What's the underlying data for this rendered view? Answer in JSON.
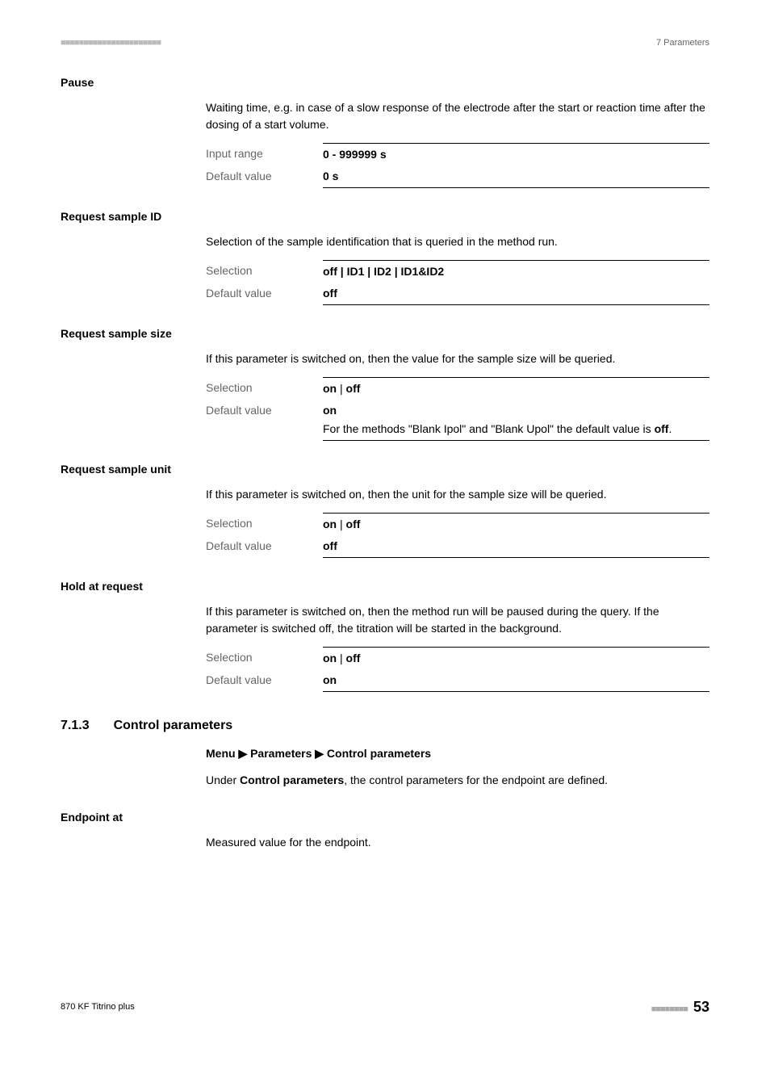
{
  "header": {
    "marks": "■■■■■■■■■■■■■■■■■■■■■■",
    "chapter": "7 Parameters"
  },
  "params": {
    "pause": {
      "name": "Pause",
      "desc": "Waiting time, e.g. in case of a slow response of the electrode after the start or reaction time after the dosing of a start volume.",
      "input_range_label": "Input range",
      "input_range_value": "0 - 999999 s",
      "default_label": "Default value",
      "default_value": "0 s"
    },
    "request_sample_id": {
      "name": "Request sample ID",
      "desc": "Selection of the sample identification that is queried in the method run.",
      "selection_label": "Selection",
      "selection_value": "off | ID1 | ID2 | ID1&ID2",
      "default_label": "Default value",
      "default_value": "off"
    },
    "request_sample_size": {
      "name": "Request sample size",
      "desc": "If this parameter is switched on, then the value for the sample size will be queried.",
      "selection_label": "Selection",
      "selection_value_on": "on",
      "selection_value_off": "off",
      "default_label": "Default value",
      "default_value": "on",
      "note_prefix": "For the methods \"Blank Ipol\" and \"Blank Upol\" the default value is ",
      "note_bold": "off",
      "note_suffix": "."
    },
    "request_sample_unit": {
      "name": "Request sample unit",
      "desc": "If this parameter is switched on, then the unit for the sample size will be queried.",
      "selection_label": "Selection",
      "selection_value_on": "on",
      "selection_value_off": "off",
      "default_label": "Default value",
      "default_value": "off"
    },
    "hold_at_request": {
      "name": "Hold at request",
      "desc": "If this parameter is switched on, then the method run will be paused during the query. If the parameter is switched off, the titration will be started in the background.",
      "selection_label": "Selection",
      "selection_value_on": "on",
      "selection_value_off": "off",
      "default_label": "Default value",
      "default_value": "on"
    }
  },
  "section": {
    "number": "7.1.3",
    "title": "Control parameters",
    "menu_path": "Menu ▶ Parameters ▶ Control parameters",
    "desc_prefix": "Under ",
    "desc_bold": "Control parameters",
    "desc_suffix": ", the control parameters for the endpoint are defined."
  },
  "endpoint_at": {
    "name": "Endpoint at",
    "desc": "Measured value for the endpoint."
  },
  "footer": {
    "left": "870 KF Titrino plus",
    "marks": "■■■■■■■■",
    "page": "53"
  }
}
